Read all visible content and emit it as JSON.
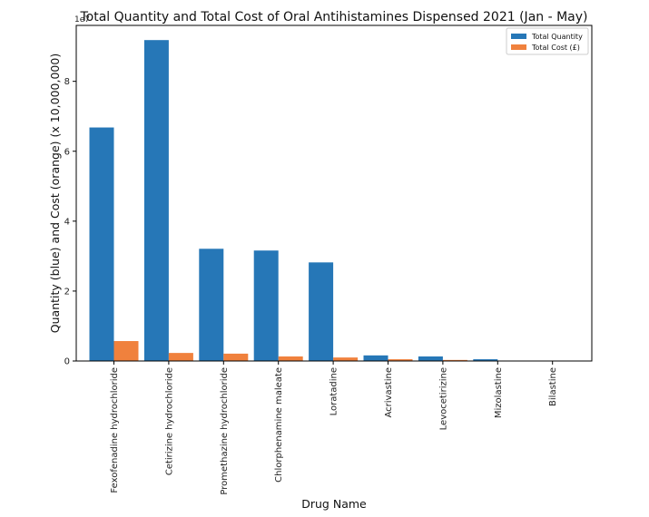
{
  "chart_data": {
    "type": "bar",
    "title": "Total Quantity and Total Cost of Oral Antihistamines Dispensed 2021 (Jan - May)",
    "xlabel": "Drug Name",
    "ylabel": "Quantity (blue) and Cost (orange) (x 10,000,000)",
    "y_offset_label": "1e7",
    "ylim": [
      0,
      9.6
    ],
    "y_ticks": [
      0,
      2,
      4,
      6,
      8
    ],
    "y_tick_labels": [
      "0",
      "2",
      "4",
      "6",
      "8"
    ],
    "grid": false,
    "legend_position": "top-right",
    "categories": [
      "Fexofenadine hydrochloride",
      "Cetirizine hydrochloride",
      "Promethazine hydrochloride",
      "Chlorphenamine maleate",
      "Loratadine",
      "Acrivastine",
      "Levocetirizine",
      "Mizolastine",
      "Bilastine"
    ],
    "series": [
      {
        "name": "Total Quantity",
        "color": "#2677b7",
        "values": [
          6.68,
          9.18,
          3.21,
          3.16,
          2.82,
          0.16,
          0.13,
          0.05,
          0.0
        ]
      },
      {
        "name": "Total Cost (£)",
        "color": "#f0813d",
        "values": [
          0.57,
          0.23,
          0.21,
          0.13,
          0.1,
          0.05,
          0.03,
          0.005,
          0.002
        ]
      }
    ]
  }
}
